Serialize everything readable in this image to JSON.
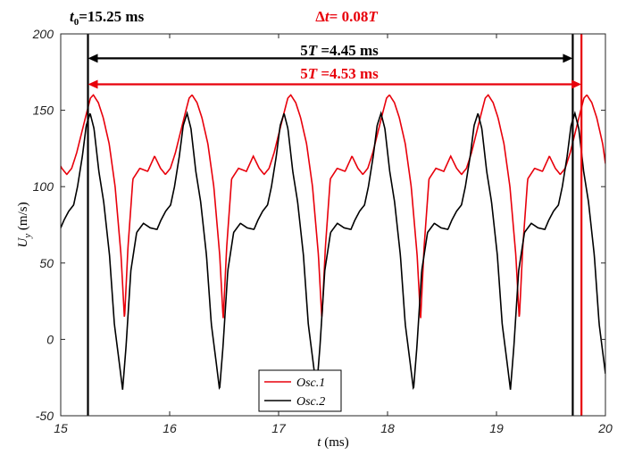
{
  "chart_data": {
    "type": "line",
    "xlabel_var": "t",
    "xlabel_unit": " (ms)",
    "ylabel_var": "U",
    "ylabel_sub": "y",
    "ylabel_unit": " (m/s)",
    "xlim": [
      15,
      20
    ],
    "ylim": [
      -50,
      200
    ],
    "xticks": [
      15,
      16,
      17,
      18,
      19,
      20
    ],
    "yticks": [
      -50,
      0,
      50,
      100,
      150,
      200
    ],
    "grid": false,
    "legend_position": "bottom-center",
    "series": [
      {
        "name": "Osc.1",
        "color": "#e8000b",
        "period": 0.906,
        "phase": 15.3,
        "profile": [
          [
            0.0,
            160
          ],
          [
            0.05,
            155
          ],
          [
            0.1,
            145
          ],
          [
            0.16,
            128
          ],
          [
            0.22,
            100
          ],
          [
            0.28,
            55
          ],
          [
            0.315,
            13
          ],
          [
            0.35,
            60
          ],
          [
            0.4,
            105
          ],
          [
            0.47,
            112
          ],
          [
            0.55,
            110
          ],
          [
            0.62,
            120
          ],
          [
            0.68,
            112
          ],
          [
            0.73,
            108
          ],
          [
            0.78,
            112
          ],
          [
            0.83,
            122
          ],
          [
            0.88,
            135
          ],
          [
            0.93,
            148
          ],
          [
            0.97,
            158
          ],
          [
            1.0,
            160
          ]
        ]
      },
      {
        "name": "Osc.2",
        "color": "#000000",
        "period": 0.89,
        "phase": 15.27,
        "profile": [
          [
            0.0,
            148
          ],
          [
            0.04,
            138
          ],
          [
            0.09,
            110
          ],
          [
            0.14,
            90
          ],
          [
            0.2,
            55
          ],
          [
            0.25,
            10
          ],
          [
            0.3,
            -15
          ],
          [
            0.335,
            -33
          ],
          [
            0.37,
            -5
          ],
          [
            0.42,
            45
          ],
          [
            0.48,
            70
          ],
          [
            0.55,
            76
          ],
          [
            0.62,
            73
          ],
          [
            0.69,
            72
          ],
          [
            0.73,
            78
          ],
          [
            0.78,
            84
          ],
          [
            0.83,
            88
          ],
          [
            0.87,
            100
          ],
          [
            0.92,
            120
          ],
          [
            0.96,
            140
          ],
          [
            1.0,
            148
          ]
        ]
      }
    ],
    "vlines": [
      {
        "x": 15.25,
        "color": "#000000"
      },
      {
        "x": 19.7,
        "color": "#000000"
      },
      {
        "x": 19.78,
        "color": "#e8000b"
      }
    ],
    "arrows": [
      {
        "from": 15.25,
        "to": 19.7,
        "y": 184,
        "color": "#000000"
      },
      {
        "from": 15.25,
        "to": 19.78,
        "y": 167,
        "color": "#e8000b"
      }
    ],
    "annotations": {
      "t0_var": "t",
      "t0_sub": "0",
      "t0_value": "=15.25 ms",
      "dt_delta": "Δ",
      "dt_var": "t",
      "dt_value": "= 0.08",
      "dt_T": "T",
      "arrow_black_pre": "5",
      "arrow_black_T": "T",
      "arrow_black_val": " =4.45 ms",
      "arrow_red_pre": "5",
      "arrow_red_T": "T",
      "arrow_red_val": " =4.53 ms"
    }
  }
}
